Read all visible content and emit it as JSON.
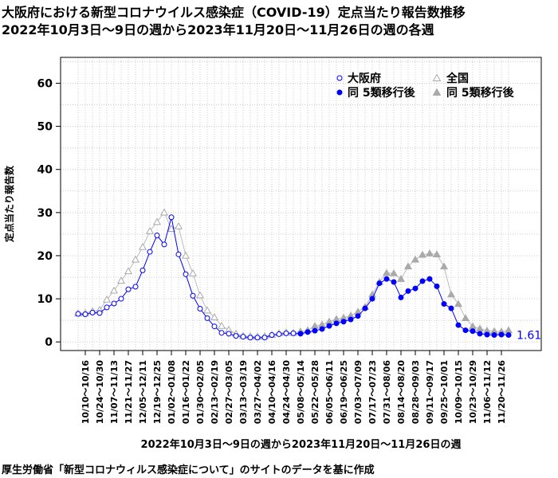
{
  "title_line1": "大阪府における新型コロナウイルス感染症（COVID-19）定点当たり報告数推移",
  "title_line2": "2022年10月3日〜9日の週から2023年11月20日〜11月26日の週の各週",
  "source_note": "厚生労働省「新型コロナウィルス感染症について」のサイトのデータを基に作成",
  "chart_data": {
    "type": "line",
    "title": "大阪府における新型コロナウイルス感染症（COVID-19）定点当たり報告数推移",
    "subtitle": "2022年10月3日〜9日の週から2023年11月20日〜11月26日の週の各週",
    "xlabel": "2022年10月3日〜9日の週から2023年11月20日〜11月26日の週",
    "ylabel": "定点当たり報告数",
    "ylim": [
      -2,
      66
    ],
    "yticks": [
      0,
      10,
      20,
      30,
      40,
      50,
      60
    ],
    "grid": true,
    "legend_position": "top-right",
    "x_tick_labels": [
      "10/10〜10/16",
      "10/24〜10/30",
      "11/07〜11/13",
      "11/21〜11/27",
      "12/05〜12/11",
      "12/19〜12/25",
      "01/02〜01/08",
      "01/16〜01/22",
      "01/30〜02/05",
      "02/13〜02/19",
      "02/27〜03/05",
      "03/13〜03/19",
      "03/27〜04/02",
      "04/10〜04/16",
      "04/24〜04/30",
      "05/08〜05/14",
      "05/22〜05/28",
      "06/05〜06/11",
      "06/19〜06/25",
      "07/03〜07/09",
      "07/17〜07/23",
      "07/31〜08/06",
      "08/14〜08/20",
      "08/28〜09/03",
      "09/11〜09/17",
      "09/25〜10/01",
      "10/09〜10/15",
      "10/23〜10/29",
      "11/06〜11/12",
      "11/20〜11/26"
    ],
    "transition_week_index": 31,
    "end_label": "1.61",
    "legend": [
      "大阪府",
      "全国",
      "同 5類移行後",
      "同 5類移行後"
    ],
    "series": [
      {
        "name": "大阪府",
        "color": "#0000ff",
        "values": [
          6.5,
          6.4,
          6.8,
          6.7,
          8.0,
          8.9,
          10.0,
          12.2,
          12.8,
          16.6,
          20.9,
          24.7,
          22.6,
          28.9,
          20.3,
          15.7,
          10.7,
          7.7,
          5.5,
          3.6,
          2.1,
          1.9,
          1.4,
          1.2,
          1.0,
          1.0,
          1.0,
          1.6,
          1.8,
          2.0,
          2.0,
          1.9,
          2.3,
          2.6,
          3.0,
          3.7,
          4.3,
          4.7,
          5.2,
          6.0,
          7.8,
          10.0,
          13.6,
          14.6,
          13.9,
          10.3,
          11.8,
          12.4,
          14.1,
          14.6,
          12.9,
          8.8,
          7.8,
          3.9,
          2.7,
          2.5,
          1.9,
          1.7,
          1.6,
          1.7,
          1.61
        ]
      },
      {
        "name": "全国",
        "color": "#aaaaaa",
        "values": [
          6.6,
          6.7,
          7.1,
          7.4,
          9.8,
          11.9,
          14.2,
          16.4,
          19.1,
          22.0,
          25.7,
          27.8,
          30.0,
          26.2,
          26.8,
          20.0,
          15.9,
          10.8,
          7.3,
          5.7,
          3.7,
          2.8,
          1.9,
          1.4,
          1.3,
          1.2,
          1.3,
          1.6,
          2.0,
          2.2,
          2.1,
          2.4,
          2.7,
          3.7,
          4.0,
          4.7,
          5.3,
          5.6,
          6.1,
          7.0,
          8.1,
          11.0,
          13.9,
          16.0,
          15.9,
          14.6,
          17.5,
          19.1,
          20.2,
          20.5,
          20.3,
          17.5,
          11.0,
          8.8,
          5.5,
          3.6,
          3.1,
          2.6,
          2.5,
          2.4,
          2.7
        ]
      }
    ]
  }
}
